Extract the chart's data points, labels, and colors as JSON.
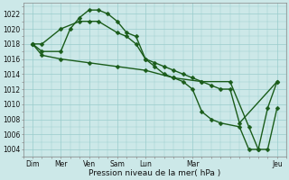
{
  "xlabel": "Pression niveau de la mer( hPa )",
  "background_color": "#cce8e8",
  "grid_color": "#99cccc",
  "line_color": "#1a5c1a",
  "ylim": [
    1003,
    1023.5
  ],
  "yticks": [
    1004,
    1006,
    1008,
    1010,
    1012,
    1014,
    1016,
    1018,
    1020,
    1022
  ],
  "xlim": [
    0,
    14
  ],
  "xtick_positions": [
    0.5,
    2.0,
    3.5,
    5.0,
    6.5,
    9.0,
    13.5
  ],
  "xtick_labels": [
    "Dim",
    "Mer",
    "Ven",
    "Sam",
    "Lun",
    "Mar",
    "Jeu"
  ],
  "line1_x": [
    0.5,
    1.0,
    2.0,
    3.0,
    3.5,
    4.0,
    5.0,
    5.5,
    6.0,
    6.5,
    7.0,
    7.5,
    8.0,
    8.5,
    9.0,
    9.5,
    10.0,
    10.5,
    11.0,
    11.5,
    13.5
  ],
  "line1_y": [
    1018,
    1018,
    1020,
    1021,
    1021,
    1021,
    1019.5,
    1019,
    1018,
    1016,
    1015.5,
    1015,
    1014.5,
    1014,
    1013.5,
    1013,
    1012.5,
    1012,
    1012,
    1007.5,
    1013
  ],
  "line2_x": [
    0.5,
    1.0,
    2.0,
    2.5,
    3.0,
    3.5,
    4.0,
    4.5,
    5.0,
    5.5,
    6.0,
    6.5,
    7.0,
    7.5,
    8.0,
    8.5,
    9.0,
    9.5,
    10.0,
    10.5,
    11.5,
    12.0,
    12.5,
    13.0,
    13.5
  ],
  "line2_y": [
    1018,
    1017,
    1017,
    1020,
    1021.5,
    1022.5,
    1022.5,
    1022,
    1021,
    1019.5,
    1019,
    1016,
    1015,
    1014,
    1013.5,
    1013,
    1012,
    1009,
    1008,
    1007.5,
    1007,
    1004,
    1004,
    1009.5,
    1013
  ],
  "line3_x": [
    0.5,
    1.0,
    2.0,
    3.5,
    5.0,
    6.5,
    8.0,
    9.5,
    11.0,
    12.0,
    12.5,
    13.0,
    13.5
  ],
  "line3_y": [
    1018,
    1016.5,
    1016,
    1015.5,
    1015,
    1014.5,
    1013.5,
    1013,
    1013,
    1007,
    1004,
    1004,
    1009.5
  ]
}
